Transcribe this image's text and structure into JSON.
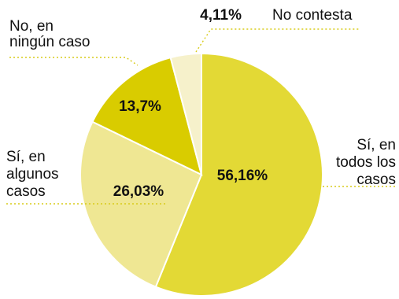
{
  "chart_data": {
    "type": "pie",
    "start_angle_deg": 0,
    "direction": "clockwise",
    "slices": [
      {
        "label_lines": [
          "Sí, en",
          "todos los",
          "casos"
        ],
        "value": 56.16,
        "value_label": "56,16%",
        "color": "#e3d935"
      },
      {
        "label_lines": [
          "Sí, en",
          "algunos",
          "casos"
        ],
        "value": 26.03,
        "value_label": "26,03%",
        "color": "#efe793"
      },
      {
        "label_lines": [
          "No, en",
          "ningún caso"
        ],
        "value": 13.7,
        "value_label": "13,7%",
        "color": "#d9cc00"
      },
      {
        "label_lines": [
          "No contesta"
        ],
        "value": 4.11,
        "value_label": "4,11%",
        "color": "#f6f1cb"
      }
    ],
    "legend": "none"
  }
}
